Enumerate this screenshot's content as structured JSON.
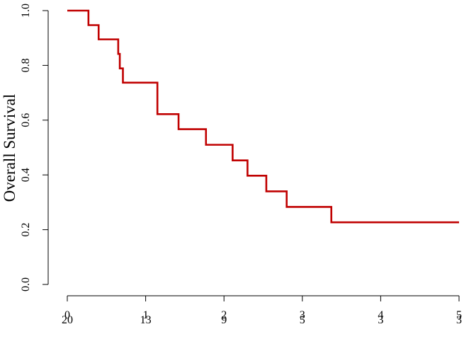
{
  "chart_data": {
    "type": "line",
    "subtype": "kaplan-meier-step",
    "title": "",
    "xlabel": "",
    "ylabel": "Overall Survival",
    "xlim": [
      0,
      5
    ],
    "ylim": [
      0,
      1
    ],
    "x_ticks": [
      0,
      1,
      2,
      3,
      4,
      5
    ],
    "x_tick_labels": [
      "0",
      "1",
      "2",
      "3",
      "4",
      "5"
    ],
    "y_ticks": [
      0.0,
      0.2,
      0.4,
      0.6,
      0.8,
      1.0
    ],
    "y_tick_labels": [
      "0.0",
      "0.2",
      "0.4",
      "0.6",
      "0.8",
      "1.0"
    ],
    "grid": false,
    "legend": "none",
    "series": [
      {
        "color": "#c00000",
        "steps": [
          {
            "x": 0.0,
            "y": 1.0
          },
          {
            "x": 0.27,
            "y": 0.947
          },
          {
            "x": 0.4,
            "y": 0.895
          },
          {
            "x": 0.65,
            "y": 0.842
          },
          {
            "x": 0.67,
            "y": 0.789
          },
          {
            "x": 0.71,
            "y": 0.737
          },
          {
            "x": 1.15,
            "y": 0.622
          },
          {
            "x": 1.42,
            "y": 0.567
          },
          {
            "x": 1.77,
            "y": 0.51
          },
          {
            "x": 2.11,
            "y": 0.453
          },
          {
            "x": 2.3,
            "y": 0.397
          },
          {
            "x": 2.54,
            "y": 0.34
          },
          {
            "x": 2.8,
            "y": 0.283
          },
          {
            "x": 3.37,
            "y": 0.227
          },
          {
            "x": 5.0,
            "y": 0.227
          }
        ]
      }
    ],
    "risk_table": {
      "times": [
        0,
        1,
        2,
        3,
        4,
        5
      ],
      "labels": [
        "20",
        "13",
        "9",
        "5",
        "3",
        "3"
      ]
    }
  }
}
